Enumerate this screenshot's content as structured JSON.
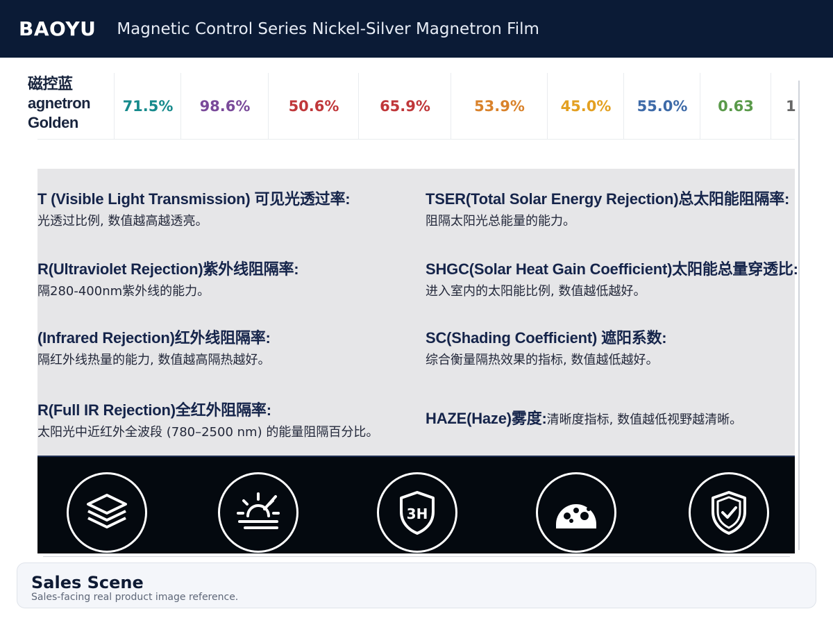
{
  "header": {
    "brand": "BAOYU",
    "title": "Magnetic Control Series Nickel-Silver Magnetron Film"
  },
  "product_row": {
    "name_lines": [
      "磁控蓝",
      "agnetron",
      "Golden"
    ],
    "values": [
      {
        "text": "71.5%",
        "color": "#168a8c"
      },
      {
        "text": "98.6%",
        "color": "#7a4a9a"
      },
      {
        "text": "50.6%",
        "color": "#c0373a"
      },
      {
        "text": "65.9%",
        "color": "#c0373a"
      },
      {
        "text": "53.9%",
        "color": "#d9822b"
      },
      {
        "text": "45.0%",
        "color": "#e3a021"
      },
      {
        "text": "55.0%",
        "color": "#3d6aa8"
      },
      {
        "text": "0.63",
        "color": "#5a9a4a"
      },
      {
        "text": "1",
        "color": "#666666"
      }
    ]
  },
  "glossary": {
    "vlt": {
      "title": "T (Visible Light Transmission) 可见光透过率:",
      "desc": "光透过比例, 数值越高越透亮。"
    },
    "tser": {
      "title": "TSER(Total Solar Energy Rejection)总太阳能阻隔率:",
      "desc": "阻隔太阳光总能量的能力。"
    },
    "uvr": {
      "title": "R(Ultraviolet Rejection)紫外线阻隔率:",
      "desc": "隔280-400nm紫外线的能力。"
    },
    "shgc": {
      "title": "SHGC(Solar Heat Gain Coefficient)太阳能总量穿透比:",
      "desc": "进入室内的太阳能比例, 数值越低越好。"
    },
    "irr": {
      "title": "(Infrared Rejection)红外线阻隔率:",
      "desc": "隔红外线热量的能力, 数值越高隔热越好。"
    },
    "sc": {
      "title": "SC(Shading Coefficient) 遮阳系数:",
      "desc": "综合衡量隔热效果的指标, 数值越低越好。"
    },
    "firr": {
      "title": "R(Full IR Rejection)全红外阻隔率:",
      "desc": "太阳光中近红外全波段 (780–2500 nm) 的能量阻隔百分比。"
    },
    "haze": {
      "title": "HAZE(Haze)雾度:",
      "desc": "清晰度指标, 数值越低视野越清晰。"
    }
  },
  "icons": [
    {
      "name": "layers-icon"
    },
    {
      "name": "sun-heat-icon"
    },
    {
      "name": "shield-3h-icon",
      "label": "3H"
    },
    {
      "name": "dashboard-gauge-icon"
    },
    {
      "name": "shield-check-icon"
    }
  ],
  "caption": {
    "title": "Sales Scene",
    "subtitle": "Sales-facing real product image reference."
  }
}
